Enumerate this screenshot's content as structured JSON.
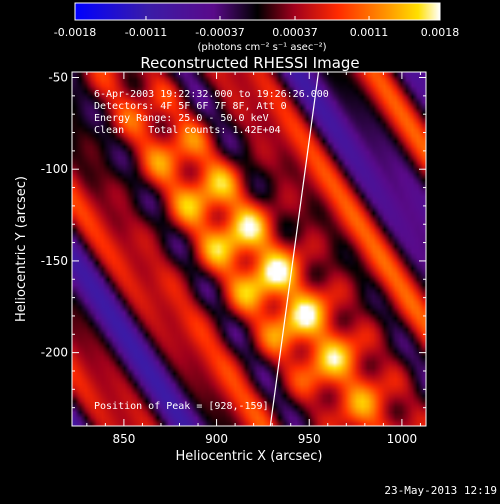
{
  "chart_data": {
    "type": "heatmap",
    "title": "Reconstructed RHESSI Image",
    "xlabel": "Heliocentric X (arcsec)",
    "ylabel": "Heliocentric Y (arcsec)",
    "xlim": [
      822,
      1013
    ],
    "ylim": [
      -240,
      -47
    ],
    "x_ticks": [
      850,
      900,
      950,
      1000
    ],
    "x_tick_labels": [
      "850",
      "900",
      "950",
      "1000"
    ],
    "y_ticks": [
      -50,
      -100,
      -150,
      -200
    ],
    "y_tick_labels": [
      "-50",
      "-100",
      "-150",
      "-200"
    ],
    "colorbar": {
      "range": [
        -0.0018,
        0.0018
      ],
      "ticks": [
        -0.0018,
        -0.0011,
        -0.00037,
        0.00037,
        0.0011,
        0.0018
      ],
      "tick_labels": [
        "-0.0018",
        "-0.0011",
        "-0.00037",
        "0.00037",
        "0.0011",
        "0.0018"
      ],
      "units_label": "(photons cm⁻² s⁻¹ asec⁻²)"
    },
    "annotations": [
      "6-Apr-2003 19:22:32.000 to 19:26:26.000",
      "Detectors: 4F 5F 6F 7F 8F, Att 0",
      "Energy Range: 25.0 - 50.0 keV",
      "Clean    Total counts: 1.42E+04"
    ],
    "peak_label": "Position of Peak = [928,-159]",
    "peak": {
      "x": 928,
      "y": -159
    },
    "limb_line": [
      {
        "x": 929,
        "y": -240
      },
      {
        "x": 955,
        "y": -47
      }
    ],
    "grid": false,
    "legend": "none"
  },
  "footer": {
    "timestamp": "23-May-2013 12:19"
  }
}
